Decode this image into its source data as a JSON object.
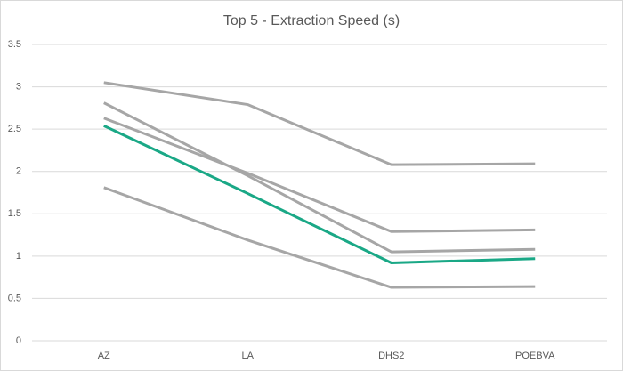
{
  "chart_data": {
    "type": "line",
    "title": "Top 5 - Extraction Speed (s)",
    "categories": [
      "AZ",
      "LA",
      "DHS2",
      "POEBVA"
    ],
    "series": [
      {
        "color": "#a6a6a6",
        "values": [
          3.05,
          2.79,
          2.08,
          2.09
        ]
      },
      {
        "color": "#a6a6a6",
        "values": [
          2.81,
          1.95,
          1.05,
          1.08
        ]
      },
      {
        "color": "#a6a6a6",
        "values": [
          2.63,
          1.98,
          1.29,
          1.31
        ]
      },
      {
        "color": "#a6a6a6",
        "values": [
          1.81,
          1.19,
          0.63,
          0.64
        ]
      },
      {
        "color": "#1aa886",
        "values": [
          2.54,
          1.74,
          0.92,
          0.97
        ]
      }
    ],
    "ylim": [
      0,
      3.5
    ],
    "yticks": [
      0,
      0.5,
      1,
      1.5,
      2,
      2.5,
      3,
      3.5
    ],
    "grid": true
  }
}
